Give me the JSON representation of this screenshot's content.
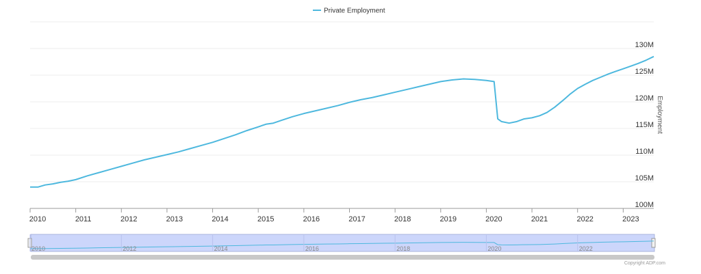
{
  "chart_data": {
    "type": "line",
    "title": "",
    "xlabel": "",
    "ylabel": "Employment",
    "legend": {
      "placement": "top-center",
      "entries": [
        "Private Employment"
      ]
    },
    "ylim": [
      100000000,
      135000000
    ],
    "y_ticks": [
      "100M",
      "105M",
      "110M",
      "115M",
      "120M",
      "125M",
      "130M"
    ],
    "x_ticks": [
      "2010",
      "2011",
      "2012",
      "2013",
      "2014",
      "2015",
      "2016",
      "2017",
      "2018",
      "2019",
      "2020",
      "2021",
      "2022",
      "2023"
    ],
    "grid": true,
    "series": [
      {
        "name": "Private Employment",
        "color": "#4db8de",
        "points": [
          [
            2010.0,
            104.0
          ],
          [
            2010.17,
            104.0
          ],
          [
            2010.33,
            104.4
          ],
          [
            2010.5,
            104.6
          ],
          [
            2010.67,
            104.9
          ],
          [
            2010.83,
            105.1
          ],
          [
            2011.0,
            105.4
          ],
          [
            2011.25,
            106.1
          ],
          [
            2011.5,
            106.7
          ],
          [
            2011.75,
            107.3
          ],
          [
            2012.0,
            107.9
          ],
          [
            2012.25,
            108.5
          ],
          [
            2012.5,
            109.1
          ],
          [
            2012.75,
            109.6
          ],
          [
            2013.0,
            110.1
          ],
          [
            2013.25,
            110.6
          ],
          [
            2013.5,
            111.2
          ],
          [
            2013.75,
            111.8
          ],
          [
            2014.0,
            112.4
          ],
          [
            2014.25,
            113.1
          ],
          [
            2014.5,
            113.8
          ],
          [
            2014.75,
            114.6
          ],
          [
            2015.0,
            115.3
          ],
          [
            2015.17,
            115.8
          ],
          [
            2015.33,
            116.0
          ],
          [
            2015.5,
            116.5
          ],
          [
            2015.75,
            117.2
          ],
          [
            2016.0,
            117.8
          ],
          [
            2016.25,
            118.3
          ],
          [
            2016.5,
            118.8
          ],
          [
            2016.75,
            119.3
          ],
          [
            2017.0,
            119.9
          ],
          [
            2017.25,
            120.4
          ],
          [
            2017.5,
            120.8
          ],
          [
            2017.75,
            121.3
          ],
          [
            2018.0,
            121.8
          ],
          [
            2018.25,
            122.3
          ],
          [
            2018.5,
            122.8
          ],
          [
            2018.75,
            123.3
          ],
          [
            2019.0,
            123.8
          ],
          [
            2019.25,
            124.1
          ],
          [
            2019.5,
            124.3
          ],
          [
            2019.75,
            124.2
          ],
          [
            2020.0,
            124.0
          ],
          [
            2020.17,
            123.8
          ],
          [
            2020.25,
            116.8
          ],
          [
            2020.33,
            116.3
          ],
          [
            2020.5,
            116.0
          ],
          [
            2020.67,
            116.3
          ],
          [
            2020.83,
            116.8
          ],
          [
            2021.0,
            117.0
          ],
          [
            2021.17,
            117.4
          ],
          [
            2021.33,
            118.0
          ],
          [
            2021.5,
            119.0
          ],
          [
            2021.67,
            120.2
          ],
          [
            2021.83,
            121.4
          ],
          [
            2022.0,
            122.5
          ],
          [
            2022.17,
            123.3
          ],
          [
            2022.33,
            124.0
          ],
          [
            2022.5,
            124.6
          ],
          [
            2022.67,
            125.2
          ],
          [
            2022.83,
            125.7
          ],
          [
            2023.0,
            126.2
          ],
          [
            2023.17,
            126.7
          ],
          [
            2023.33,
            127.2
          ],
          [
            2023.5,
            127.8
          ],
          [
            2023.67,
            128.5
          ]
        ]
      }
    ],
    "navigator": {
      "labels": [
        "2010",
        "2012",
        "2014",
        "2016",
        "2018",
        "2020",
        "2022"
      ]
    }
  },
  "credits": "Copyright ADP.com"
}
